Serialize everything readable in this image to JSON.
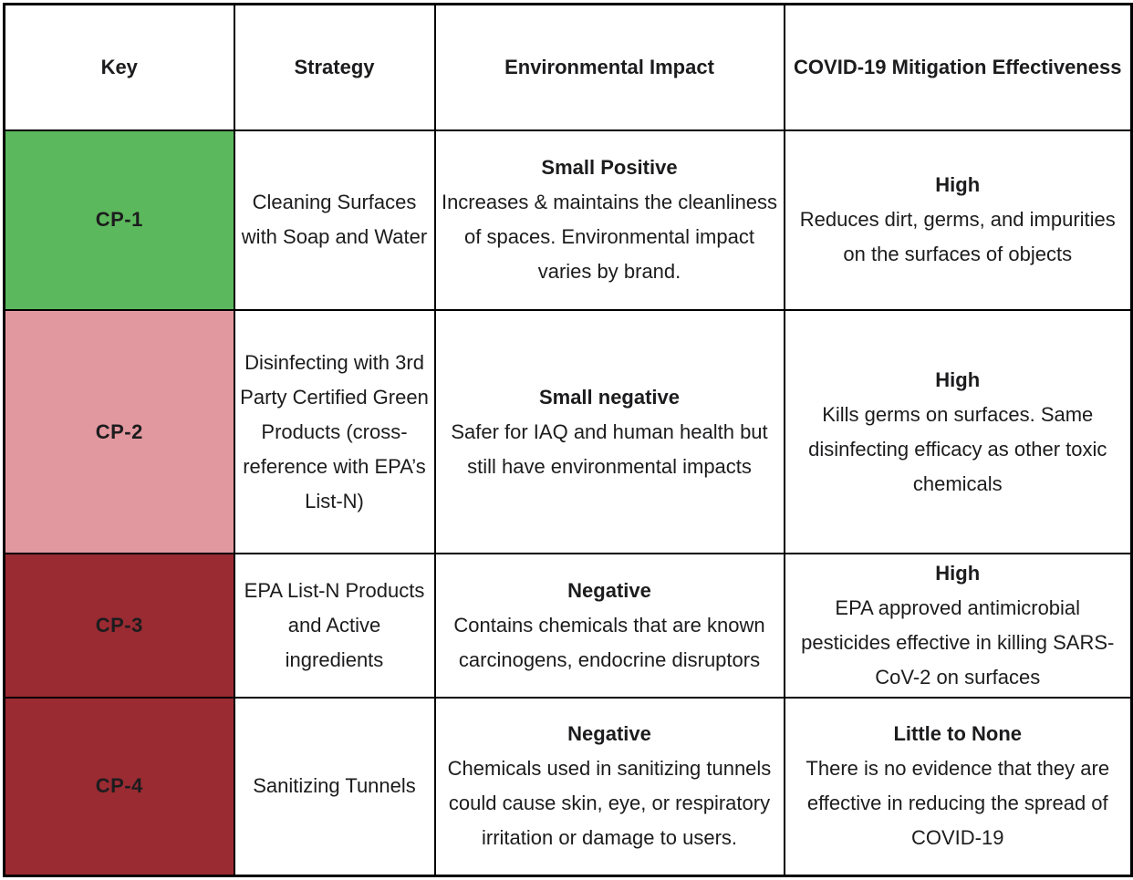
{
  "colors": {
    "cp1_green": "#5CB85C",
    "cp2_pink": "#E2989F",
    "cp3_dark_red": "#9A2B32",
    "cp4_dark_red": "#9A2B32",
    "border_black": "#000000",
    "text_dark": "#1C1C1E",
    "key_text_white": "#FFFFFF"
  },
  "table": {
    "headers": [
      "Key",
      "Strategy",
      "Environmental Impact",
      "COVID-19 Mitigation Effectiveness"
    ],
    "rows": [
      {
        "key": "CP-1",
        "key_color": "#5CB85C",
        "strategy": "Cleaning Surfaces with Soap and Water",
        "impact_title": "Small Positive",
        "impact_text": "Increases & maintains the cleanliness of spaces. Environmental impact varies by brand.",
        "covid_title": "High",
        "covid_text": "Reduces dirt, germs, and impurities on the surfaces of objects"
      },
      {
        "key": "CP-2",
        "key_color": "#E2989F",
        "strategy": "Disinfecting with 3rd Party Certified Green Products (cross-reference with EPA’s List-N)",
        "impact_title": "Small negative",
        "impact_text": "Safer for IAQ and human health but still have environmental impacts",
        "covid_title": "High",
        "covid_text": "Kills germs on surfaces. Same disinfecting efficacy as other toxic chemicals"
      },
      {
        "key": "CP-3",
        "key_color": "#9A2B32",
        "strategy": "EPA List-N Products and Active ingredients",
        "impact_title": "Negative",
        "impact_text": "Contains chemicals that are known carcinogens, endocrine disruptors",
        "covid_title": "High",
        "covid_text": "EPA approved antimicrobial pesticides effective in killing SARS-CoV-2 on surfaces"
      },
      {
        "key": "CP-4",
        "key_color": "#9A2B32",
        "strategy": "Sanitizing Tunnels",
        "impact_title": "Negative",
        "impact_text": "Chemicals used in sanitizing tunnels could cause skin, eye, or respiratory irritation or damage to users.",
        "covid_title": "Little to None",
        "covid_text": "There is no evidence that they are effective in reducing the spread of COVID-19"
      }
    ]
  }
}
